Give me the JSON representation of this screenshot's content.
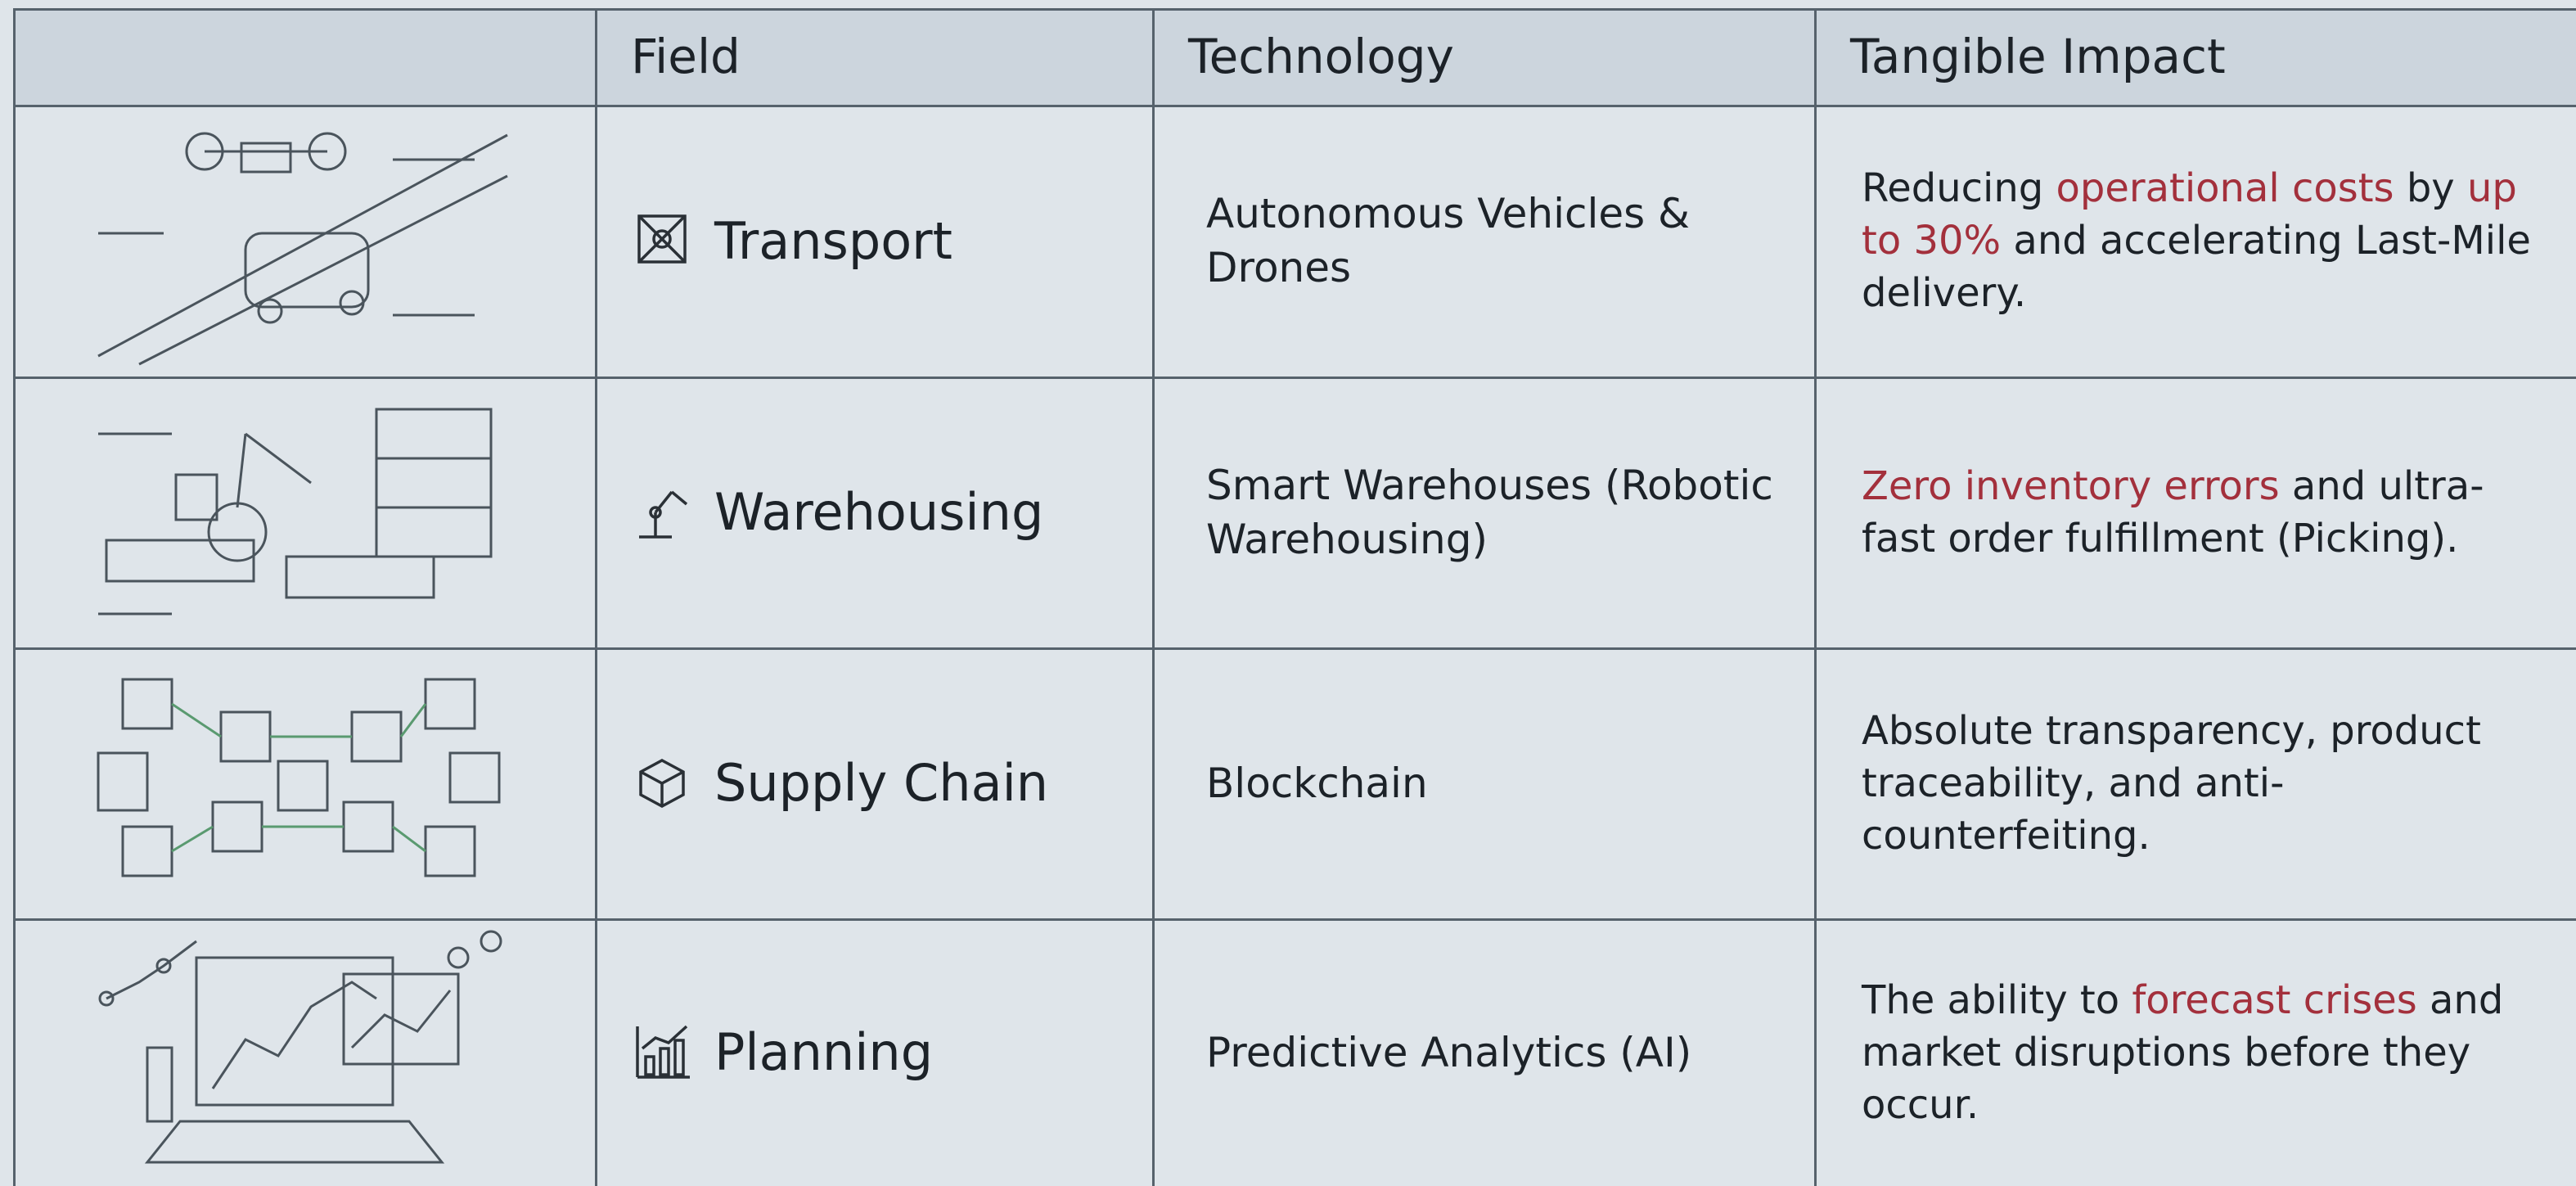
{
  "table": {
    "header": [
      "Field",
      "Technology",
      "Tangible Impact"
    ],
    "rows": [
      {
        "field": "Transport",
        "technology": "Autonomous Vehicles & Drones",
        "impact": [
          {
            "text": "Reducing ",
            "highlight": false
          },
          {
            "text": "operational costs",
            "highlight": true
          },
          {
            "text": " by ",
            "highlight": false
          },
          {
            "text": "up to 30%",
            "highlight": true
          },
          {
            "text": " and accelerating Last-Mile delivery.",
            "highlight": false
          }
        ]
      },
      {
        "field": "Warehousing",
        "technology": "Smart Warehouses (Robotic Warehousing)",
        "impact": [
          {
            "text": "Zero inventory errors",
            "highlight": true
          },
          {
            "text": " and ultra-fast order fulfillment (Picking).",
            "highlight": false
          }
        ]
      },
      {
        "field": "Supply Chain",
        "technology": "Blockchain",
        "impact": [
          {
            "text": "Absolute transparency, product traceability, and anti-counterfeiting.",
            "highlight": false
          }
        ]
      },
      {
        "field": "Planning",
        "technology": "Predictive Analytics (AI)",
        "impact": [
          {
            "text": "The ability to ",
            "highlight": false
          },
          {
            "text": "forecast crises",
            "highlight": true
          },
          {
            "text": " and market disruptions before they occur.",
            "highlight": false
          }
        ]
      }
    ],
    "highlight_color": "#a3303c"
  }
}
